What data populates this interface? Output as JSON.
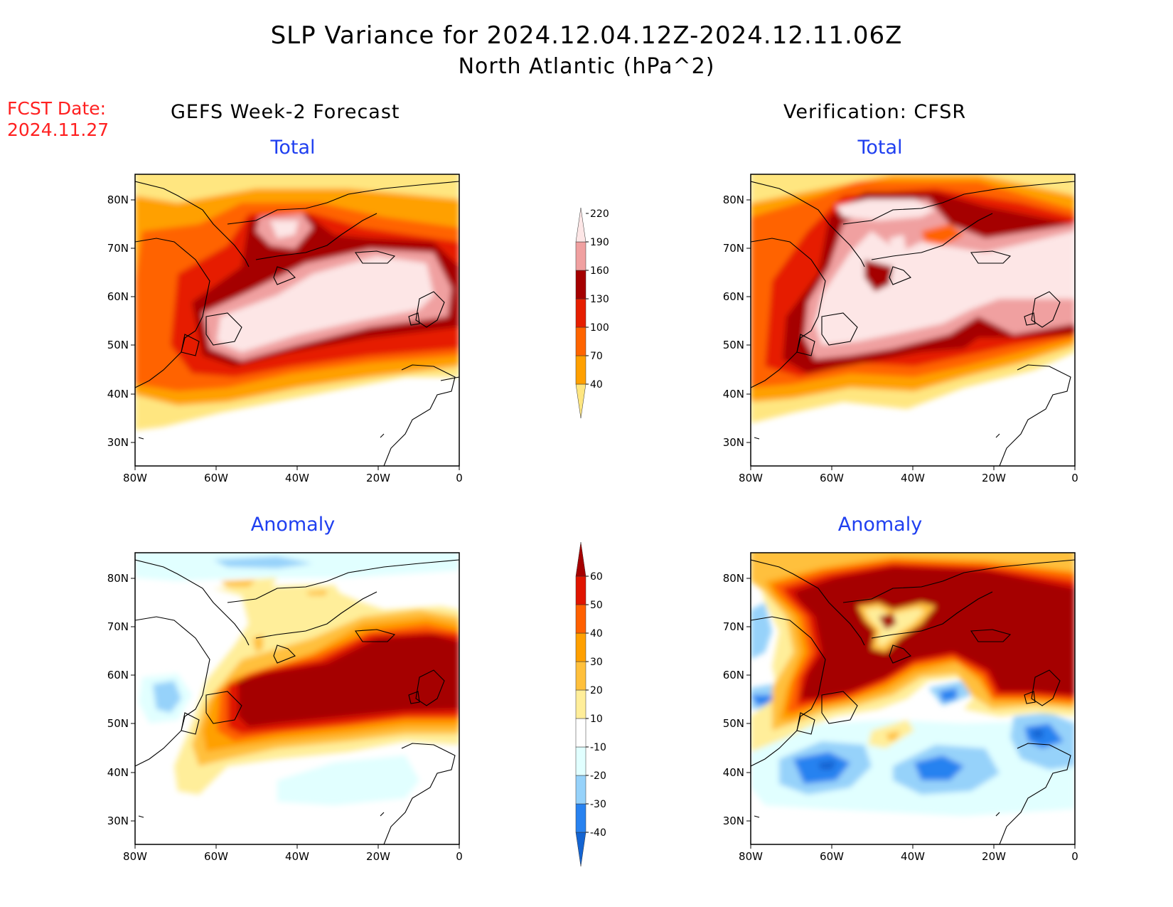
{
  "header": {
    "title": "SLP Variance for 2024.12.04.12Z-2024.12.11.06Z",
    "subtitle": "North Atlantic (hPa^2)",
    "fcst_label": "FCST Date:",
    "fcst_date": "2024.11.27",
    "left_column": "GEFS Week-2 Forecast",
    "right_column": "Verification: CFSR"
  },
  "panels": {
    "total_title": "Total",
    "anomaly_title": "Anomaly"
  },
  "axes": {
    "lat_ticks": [
      "80N",
      "70N",
      "60N",
      "50N",
      "40N",
      "30N"
    ],
    "lon_ticks": [
      "80W",
      "60W",
      "40W",
      "20W",
      "0"
    ]
  },
  "colorbars": {
    "total": {
      "levels": [
        "40",
        "70",
        "100",
        "130",
        "160",
        "190",
        "220"
      ],
      "colors": [
        "#ffe680",
        "#ffa000",
        "#ff6400",
        "#e61e00",
        "#a50000",
        "#f0a0a0",
        "#fde6e6"
      ]
    },
    "anomaly": {
      "levels": [
        "-40",
        "-30",
        "-20",
        "-10",
        "10",
        "20",
        "30",
        "40",
        "50",
        "60"
      ],
      "colors": [
        "#1464d2",
        "#2882f0",
        "#96d2fa",
        "#e1ffff",
        "#ffffff",
        "#ffee9a",
        "#ffc03c",
        "#ffa000",
        "#ff6000",
        "#e01400",
        "#a50000"
      ]
    }
  }
}
